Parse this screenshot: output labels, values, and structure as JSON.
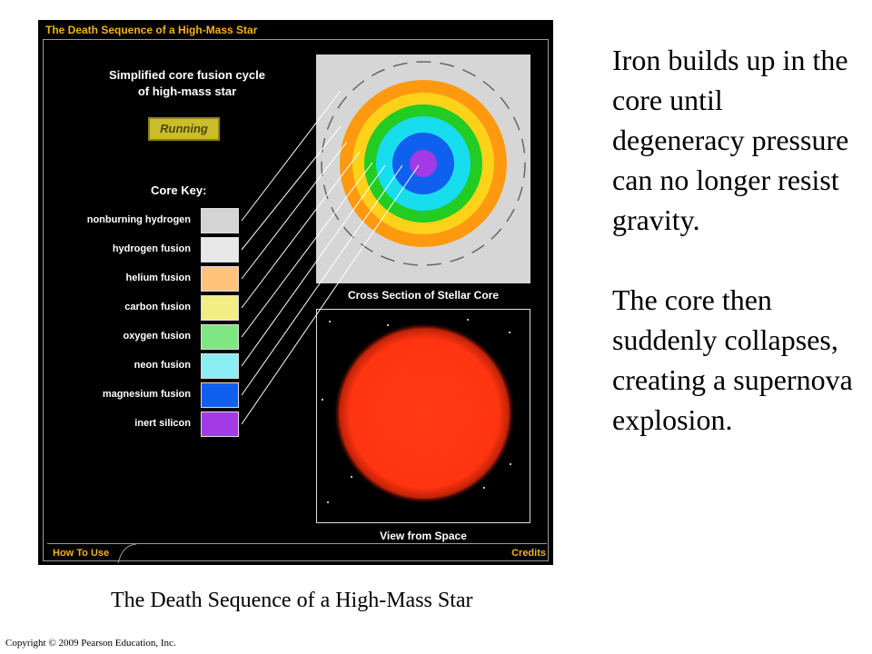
{
  "app": {
    "title": "The Death Sequence of a High-Mass Star",
    "cycle_title_line1": "Simplified core fusion cycle",
    "cycle_title_line2": "of high-mass star",
    "status_button": "Running",
    "core_key_title": "Core Key:",
    "core_key": [
      {
        "label": "nonburning hydrogen",
        "color": "#d4d4d4"
      },
      {
        "label": "hydrogen fusion",
        "color": "#e8e8e8"
      },
      {
        "label": "helium fusion",
        "color": "#ffc47a"
      },
      {
        "label": "carbon fusion",
        "color": "#f2ee84"
      },
      {
        "label": "oxygen fusion",
        "color": "#7ee682"
      },
      {
        "label": "neon fusion",
        "color": "#8aeef2"
      },
      {
        "label": "magnesium fusion",
        "color": "#1060f0"
      },
      {
        "label": "inert silicon",
        "color": "#a23ae6"
      }
    ],
    "core_rings_colors": [
      "#ff9a10",
      "#ffd21a",
      "#22cc22",
      "#18ddee",
      "#1060f0",
      "#a23ae6"
    ],
    "core_caption": "Cross Section of Stellar Core",
    "space_caption": "View from Space",
    "how_to_use": "How To Use",
    "credits": "Credits"
  },
  "description": {
    "paragraph1": "Iron builds up in the core until degeneracy pressure can no longer resist gravity.",
    "paragraph2": "The core then suddenly collapses, creating a supernova explosion."
  },
  "caption": "The Death Sequence of a High-Mass Star",
  "copyright": "Copyright © 2009 Pearson Education, Inc."
}
